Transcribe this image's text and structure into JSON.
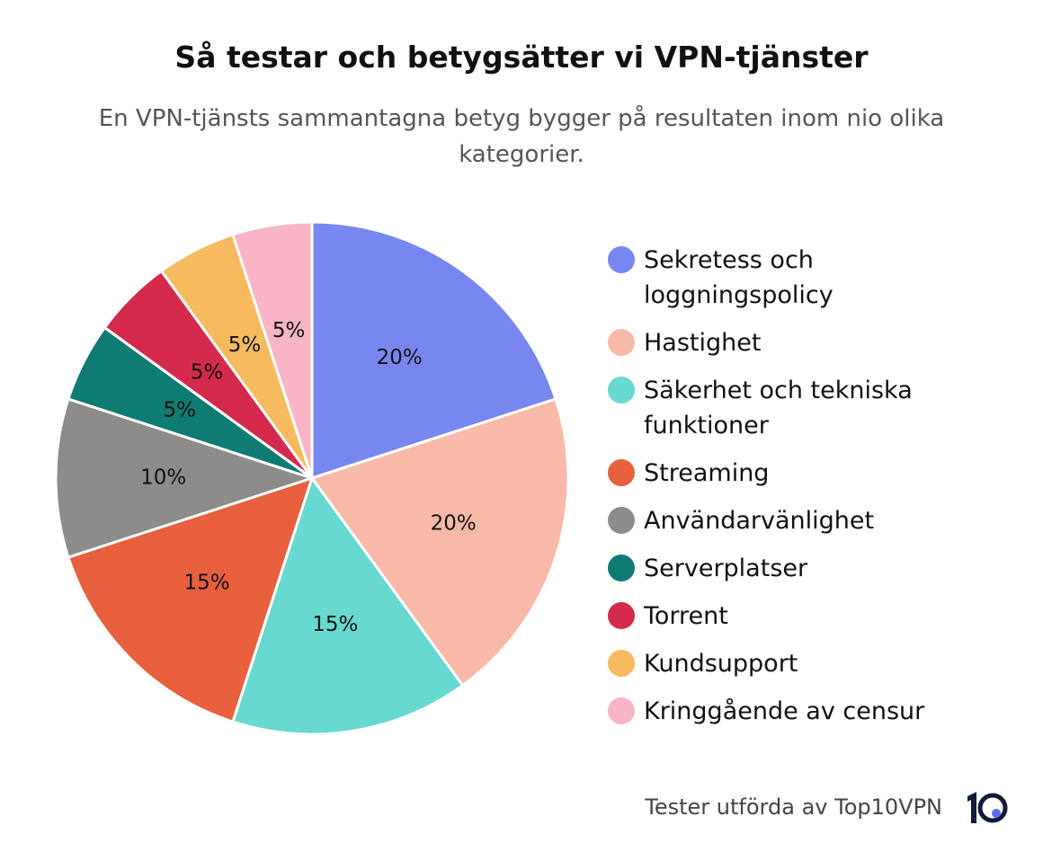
{
  "chart_data": {
    "type": "pie",
    "title": "Så testar och betygsätter vi VPN-tjänster",
    "subtitle": "En VPN-tjänsts sammantagna betyg bygger på resultaten inom nio olika kategorier.",
    "categories": [
      "Sekretess och loggningspolicy",
      "Hastighet",
      "Säkerhet och tekniska funktioner",
      "Streaming",
      "Användarvänlighet",
      "Serverplatser",
      "Torrent",
      "Kundsupport",
      "Kringgående av censur"
    ],
    "values": [
      20,
      20,
      15,
      15,
      10,
      5,
      5,
      5,
      5
    ],
    "value_labels": [
      "20%",
      "20%",
      "15%",
      "15%",
      "10%",
      "5%",
      "5%",
      "5%",
      "5%"
    ],
    "colors": [
      "#7887f0",
      "#f9b9a8",
      "#67d9d0",
      "#e8603d",
      "#8e8c8b",
      "#0f7c73",
      "#d42b4d",
      "#f6bb5e",
      "#f7b5c6"
    ],
    "legend": "right",
    "footer": "Tester utförda av Top10VPN"
  }
}
